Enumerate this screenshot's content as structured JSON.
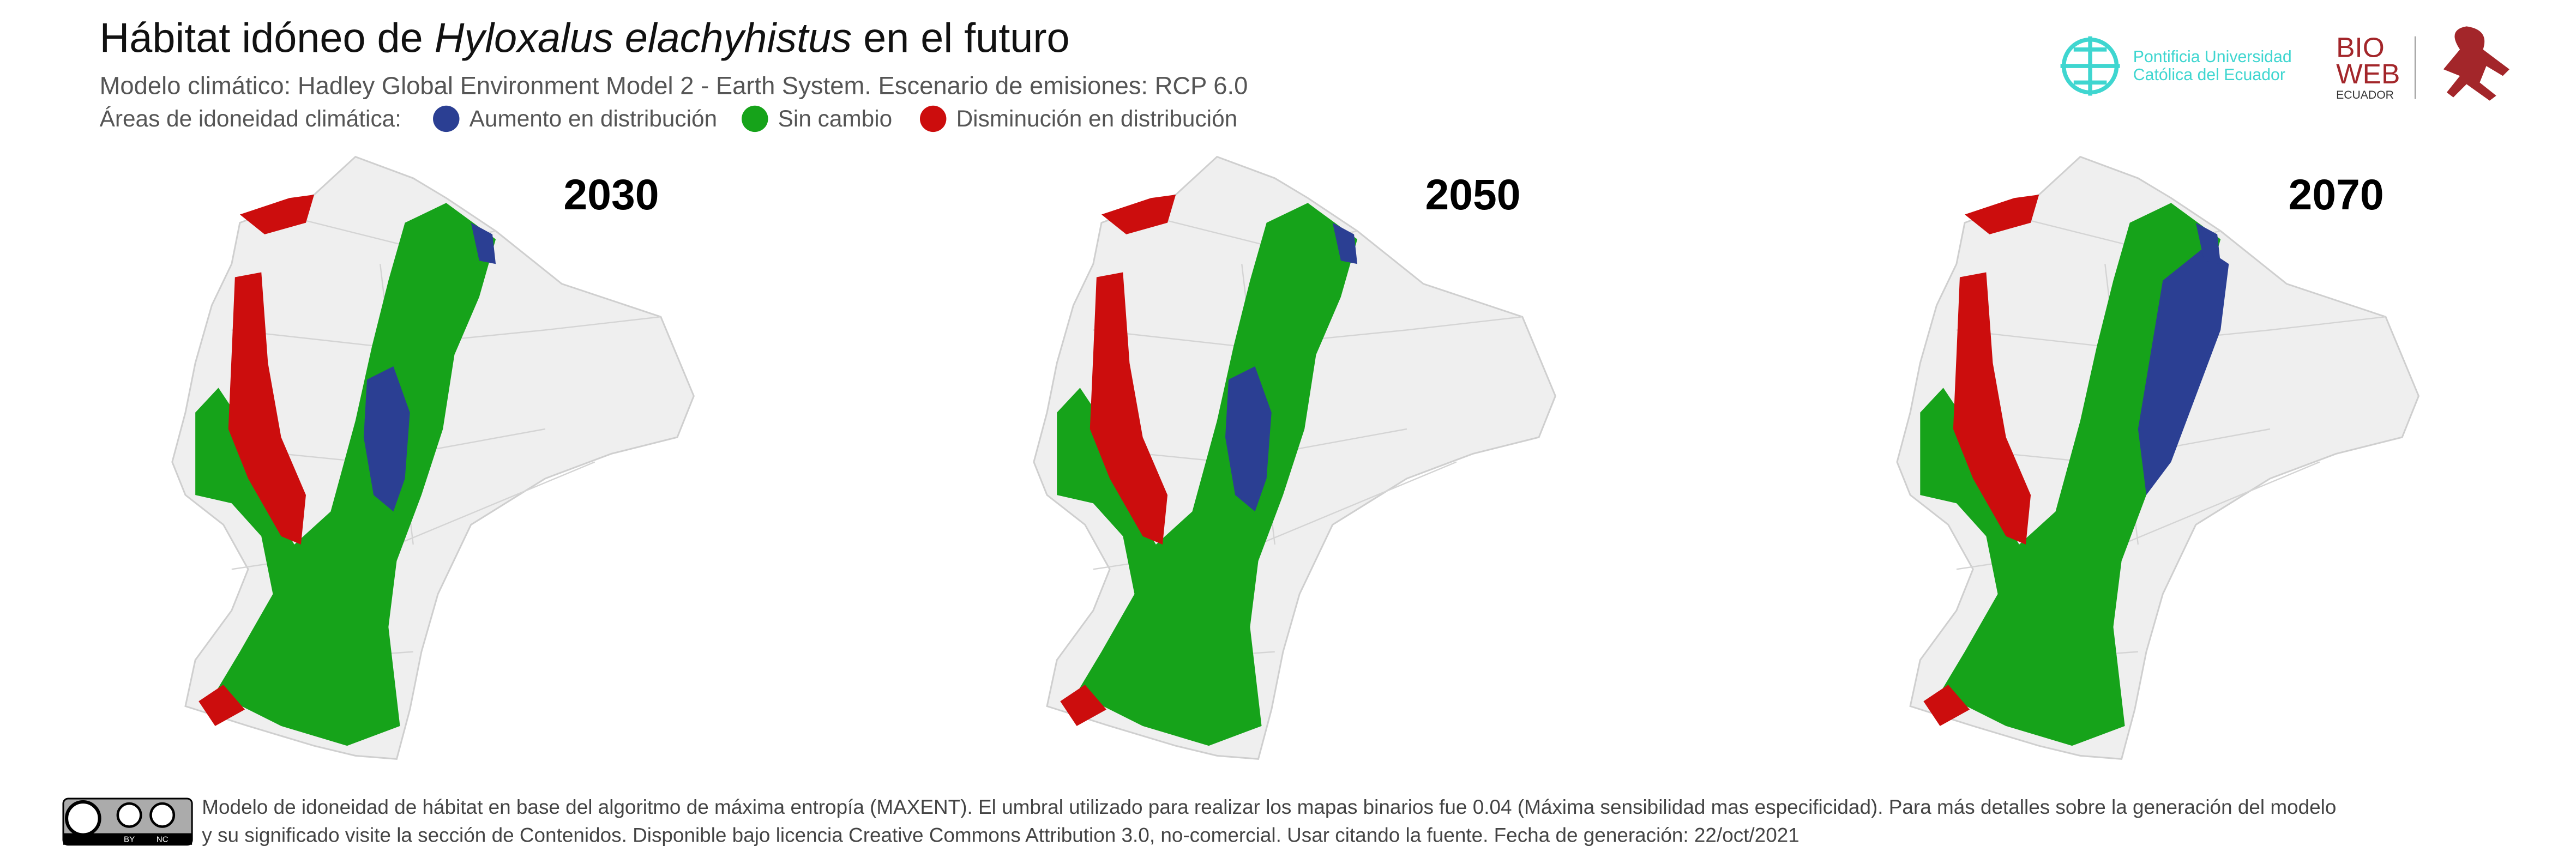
{
  "header": {
    "title_start": "Hábitat idóneo de ",
    "title_species": "Hyloxalus elachyhistus",
    "title_end": " en el futuro",
    "subtitle": "Modelo climático: Hadley Global Environment Model 2 - Earth System. Escenario de emisiones: RCP 6.0",
    "legend_label": "Áreas de idoneidad climática:",
    "legend": [
      {
        "name": "Aumento en distribución",
        "color": "#2b3f93"
      },
      {
        "name": "Sin cambio",
        "color": "#16a31a"
      },
      {
        "name": "Disminución en distribución",
        "color": "#cc0d0d"
      }
    ]
  },
  "logos": {
    "puce_line1": "Pontificia Universidad",
    "puce_line2": "Católica del Ecuador",
    "bio": "BIO",
    "web": "WEB",
    "ecuador": "ECUADOR"
  },
  "maps": [
    {
      "year": "2030"
    },
    {
      "year": "2050"
    },
    {
      "year": "2070"
    }
  ],
  "footer": {
    "cc_by": "BY",
    "cc_nc": "NC",
    "line1": "Modelo de idoneidad de hábitat en base del algoritmo de máxima entropía (MAXENT). El umbral utilizado para realizar los mapas binarios fue 0.04 (Máxima sensibilidad mas especificidad). Para más detalles sobre la generación del modelo",
    "line2": "y su significado visite la sección de Contenidos. Disponible bajo licencia Creative Commons Attribution 3.0, no-comercial. Usar citando la fuente. Fecha de generación: 22/oct/2021"
  }
}
